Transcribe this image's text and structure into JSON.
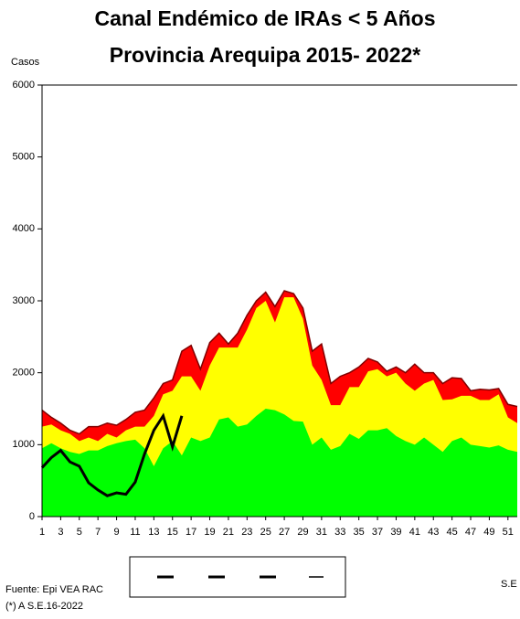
{
  "chart_data": {
    "type": "area",
    "title": "Canal Endémico de IRAs < 5 Años",
    "subtitle": "Provincia Arequipa  2015- 2022*",
    "y_label": "Casos",
    "x_label": "S.E",
    "source": "Fuente: Epi VEA RAC",
    "note": "(*) A S.E.16-2022",
    "x": [
      1,
      2,
      3,
      4,
      5,
      6,
      7,
      8,
      9,
      10,
      11,
      12,
      13,
      14,
      15,
      16,
      17,
      18,
      19,
      20,
      21,
      22,
      23,
      24,
      25,
      26,
      27,
      28,
      29,
      30,
      31,
      32,
      33,
      34,
      35,
      36,
      37,
      38,
      39,
      40,
      41,
      42,
      43,
      44,
      45,
      46,
      47,
      48,
      49,
      50,
      51,
      52
    ],
    "xlim": [
      1,
      52
    ],
    "xticks": [
      1,
      3,
      5,
      7,
      9,
      11,
      13,
      15,
      17,
      19,
      21,
      23,
      25,
      27,
      29,
      31,
      33,
      35,
      37,
      39,
      41,
      43,
      45,
      47,
      49,
      51
    ],
    "ylim": [
      0,
      6000
    ],
    "yticks": [
      0,
      1000,
      2000,
      3000,
      4000,
      5000,
      6000
    ],
    "series": [
      {
        "color": "#ff0000",
        "mark": "area",
        "values": [
          1480,
          1380,
          1300,
          1200,
          1150,
          1250,
          1250,
          1300,
          1270,
          1350,
          1450,
          1480,
          1650,
          1850,
          1900,
          2300,
          2380,
          2050,
          2420,
          2550,
          2400,
          2550,
          2800,
          3000,
          3120,
          2920,
          3140,
          3100,
          2900,
          2300,
          2400,
          1850,
          1950,
          2000,
          2080,
          2200,
          2150,
          2020,
          2080,
          2000,
          2120,
          2000,
          2000,
          1850,
          1930,
          1920,
          1750,
          1770,
          1760,
          1780,
          1560,
          1530
        ]
      },
      {
        "color": "#ffff00",
        "mark": "area",
        "values": [
          1250,
          1280,
          1200,
          1150,
          1050,
          1100,
          1050,
          1150,
          1100,
          1200,
          1250,
          1250,
          1400,
          1700,
          1750,
          1950,
          1950,
          1750,
          2100,
          2350,
          2350,
          2350,
          2600,
          2900,
          3000,
          2700,
          3050,
          3050,
          2750,
          2100,
          1900,
          1550,
          1550,
          1800,
          1800,
          2020,
          2050,
          1950,
          2000,
          1850,
          1750,
          1850,
          1900,
          1620,
          1630,
          1680,
          1680,
          1620,
          1620,
          1700,
          1380,
          1300
        ]
      },
      {
        "color": "#00ff00",
        "mark": "area",
        "values": [
          950,
          1020,
          950,
          900,
          870,
          920,
          920,
          980,
          1020,
          1050,
          1070,
          950,
          700,
          950,
          1050,
          850,
          1100,
          1050,
          1100,
          1350,
          1380,
          1250,
          1280,
          1400,
          1500,
          1480,
          1420,
          1330,
          1320,
          1000,
          1100,
          930,
          980,
          1150,
          1080,
          1200,
          1200,
          1230,
          1120,
          1050,
          1000,
          1100,
          1000,
          900,
          1050,
          1100,
          1000,
          980,
          960,
          990,
          930,
          900
        ]
      },
      {
        "color": "#000000",
        "mark": "line",
        "values": [
          680,
          820,
          920,
          760,
          700,
          470,
          370,
          290,
          330,
          310,
          480,
          870,
          1200,
          1400,
          970,
          1400,
          null,
          null,
          null,
          null,
          null,
          null,
          null,
          null,
          null,
          null,
          null,
          null,
          null,
          null,
          null,
          null,
          null,
          null,
          null,
          null,
          null,
          null,
          null,
          null,
          null,
          null,
          null,
          null,
          null,
          null,
          null,
          null,
          null,
          null,
          null,
          null
        ]
      }
    ]
  }
}
